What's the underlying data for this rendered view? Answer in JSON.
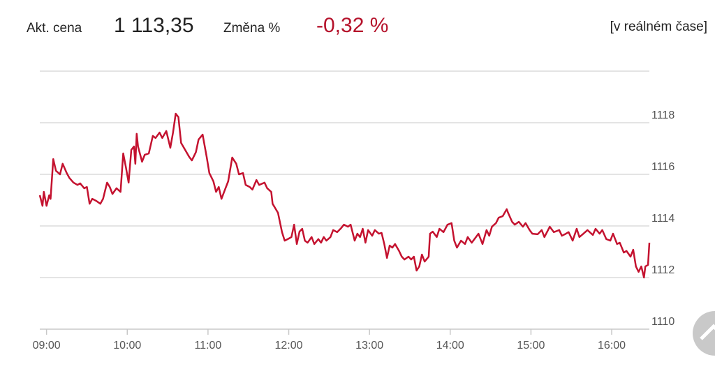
{
  "header": {
    "price_label": "Akt. cena",
    "price": "1 113,35",
    "change_label": "Změna %",
    "change": "-0,32 %",
    "realtime": "[v reálném čase]"
  },
  "chart_data": {
    "type": "line",
    "color": "#c4122f",
    "grid": true,
    "xlim": [
      535,
      988
    ],
    "ylim": [
      1110,
      1120
    ],
    "xticks": [
      {
        "value": 540,
        "label": "09:00"
      },
      {
        "value": 600,
        "label": "10:00"
      },
      {
        "value": 660,
        "label": "11:00"
      },
      {
        "value": 720,
        "label": "12:00"
      },
      {
        "value": 780,
        "label": "13:00"
      },
      {
        "value": 840,
        "label": "14:00"
      },
      {
        "value": 900,
        "label": "15:00"
      },
      {
        "value": 960,
        "label": "16:00"
      }
    ],
    "yticks": [
      1110,
      1112,
      1114,
      1116,
      1118
    ],
    "x": [
      535,
      537,
      538,
      540,
      542,
      543,
      545,
      547,
      550,
      552,
      555,
      557,
      560,
      563,
      565,
      568,
      570,
      572,
      574,
      577,
      580,
      582,
      585,
      587,
      589,
      592,
      595,
      597,
      599,
      601,
      603,
      605,
      606,
      607,
      608,
      611,
      613,
      616,
      619,
      621,
      624,
      626,
      629,
      632,
      634,
      636,
      638,
      640,
      643,
      646,
      648,
      651,
      653,
      656,
      659,
      661,
      664,
      666,
      668,
      670,
      673,
      675,
      678,
      681,
      683,
      686,
      688,
      691,
      693,
      696,
      698,
      702,
      704,
      707,
      708,
      712,
      715,
      717,
      720,
      722,
      724,
      726,
      728,
      730,
      732,
      734,
      737,
      739,
      742,
      744,
      746,
      748,
      751,
      753,
      756,
      759,
      761,
      764,
      766,
      769,
      771,
      773,
      775,
      777,
      779,
      782,
      784,
      787,
      789,
      791,
      793,
      795,
      797,
      799,
      802,
      804,
      806,
      809,
      811,
      813,
      815,
      817,
      819,
      821,
      824,
      825,
      827,
      830,
      832,
      835,
      838,
      841,
      843,
      845,
      848,
      851,
      853,
      856,
      858,
      861,
      864,
      867,
      869,
      871,
      874,
      876,
      879,
      882,
      883,
      886,
      888,
      891,
      894,
      896,
      899,
      901,
      905,
      908,
      910,
      914,
      917,
      921,
      923,
      926,
      928,
      931,
      934,
      936,
      939,
      942,
      946,
      948,
      951,
      953,
      956,
      959,
      961,
      964,
      966,
      969,
      971,
      974,
      976,
      978,
      980,
      982,
      984,
      985,
      987,
      988
    ],
    "values": [
      1115.19,
      1114.78,
      1115.32,
      1114.78,
      1115.19,
      1115.05,
      1116.59,
      1116.14,
      1116.0,
      1116.41,
      1116.05,
      1115.86,
      1115.68,
      1115.59,
      1115.65,
      1115.46,
      1115.51,
      1114.86,
      1115.05,
      1114.97,
      1114.86,
      1115.05,
      1115.68,
      1115.51,
      1115.24,
      1115.46,
      1115.32,
      1116.81,
      1116.27,
      1115.68,
      1116.95,
      1117.08,
      1116.41,
      1117.57,
      1117.08,
      1116.49,
      1116.76,
      1116.81,
      1117.49,
      1117.41,
      1117.62,
      1117.41,
      1117.68,
      1117.03,
      1117.62,
      1118.35,
      1118.22,
      1117.22,
      1116.95,
      1116.68,
      1116.54,
      1116.86,
      1117.35,
      1117.54,
      1116.68,
      1116.05,
      1115.73,
      1115.32,
      1115.51,
      1115.05,
      1115.46,
      1115.73,
      1116.65,
      1116.41,
      1116.0,
      1116.05,
      1115.59,
      1115.51,
      1115.41,
      1115.78,
      1115.59,
      1115.68,
      1115.46,
      1115.32,
      1114.86,
      1114.51,
      1113.76,
      1113.43,
      1113.51,
      1113.57,
      1114.05,
      1113.3,
      1113.78,
      1113.89,
      1113.43,
      1113.35,
      1113.57,
      1113.3,
      1113.49,
      1113.35,
      1113.57,
      1113.43,
      1113.57,
      1113.84,
      1113.76,
      1113.92,
      1114.05,
      1113.97,
      1114.05,
      1113.43,
      1113.7,
      1113.57,
      1113.89,
      1113.35,
      1113.84,
      1113.62,
      1113.84,
      1113.7,
      1113.73,
      1113.3,
      1112.76,
      1113.24,
      1113.16,
      1113.3,
      1113.03,
      1112.81,
      1112.7,
      1112.81,
      1112.7,
      1112.81,
      1112.27,
      1112.43,
      1112.89,
      1112.62,
      1112.81,
      1113.7,
      1113.78,
      1113.57,
      1113.89,
      1113.76,
      1114.05,
      1114.11,
      1113.43,
      1113.16,
      1113.43,
      1113.3,
      1113.57,
      1113.35,
      1113.49,
      1113.7,
      1113.3,
      1113.84,
      1113.62,
      1113.97,
      1114.11,
      1114.32,
      1114.38,
      1114.65,
      1114.51,
      1114.16,
      1114.05,
      1114.16,
      1113.97,
      1114.11,
      1113.84,
      1113.7,
      1113.68,
      1113.84,
      1113.57,
      1113.97,
      1113.76,
      1113.84,
      1113.62,
      1113.7,
      1113.76,
      1113.43,
      1113.89,
      1113.57,
      1113.7,
      1113.84,
      1113.65,
      1113.89,
      1113.7,
      1113.84,
      1113.49,
      1113.43,
      1113.7,
      1113.3,
      1113.35,
      1112.97,
      1113.03,
      1112.81,
      1113.08,
      1112.43,
      1112.22,
      1112.43,
      1112.0,
      1112.43,
      1112.49,
      1113.35
    ]
  }
}
